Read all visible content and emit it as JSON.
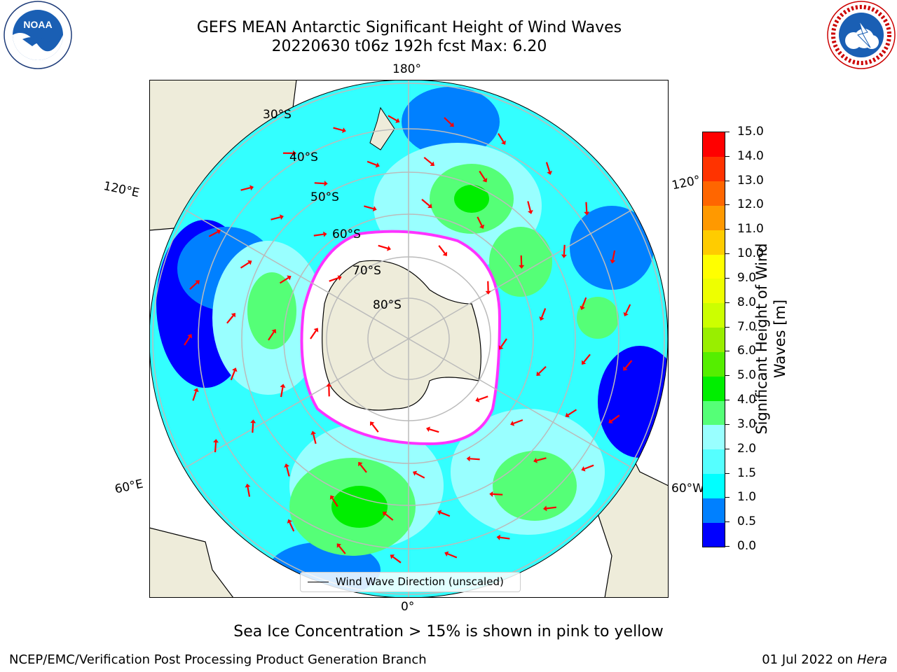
{
  "title": {
    "line1": "GEFS MEAN Antarctic Significant Height of Wind Waves",
    "line2": "20220630 t06z 192h fcst   Max: 6.20"
  },
  "logos": {
    "left": "NOAA",
    "right": "NATIONAL WEATHER SERVICE"
  },
  "map": {
    "projection": "south-polar-stereographic",
    "longitude_labels": {
      "top": "180°",
      "bottom": "0°",
      "upper_left": "120°E",
      "lower_left": "60°E",
      "upper_right": "120°",
      "lower_right": "60°W"
    },
    "latitude_labels": [
      "30°S",
      "40°S",
      "50°S",
      "60°S",
      "70°S",
      "80°S"
    ],
    "legend": "Wind Wave Direction (unscaled)",
    "colors": {
      "land": "#eeecda",
      "ice_free_fill": "#ffffff",
      "sea_ice_edge": "#ff33ff",
      "arrow": "#ff0000",
      "grid": "#bbbbbb"
    }
  },
  "colorbar": {
    "label_line1": "Significant Height of Wind",
    "label_line2": "Waves [m]",
    "ticks": [
      "0.0",
      "0.5",
      "1.0",
      "1.5",
      "2.0",
      "3.0",
      "4.0",
      "5.0",
      "6.0",
      "7.0",
      "8.0",
      "9.0",
      "10.0",
      "11.0",
      "12.0",
      "13.0",
      "14.0",
      "15.0"
    ],
    "colors": [
      "#0000ff",
      "#0080ff",
      "#00ffff",
      "#55ffff",
      "#99ffff",
      "#55ff77",
      "#00ee00",
      "#55ee00",
      "#99ee00",
      "#ccff00",
      "#eeff00",
      "#ffff00",
      "#ffcc00",
      "#ff9900",
      "#ff6600",
      "#ff3300",
      "#ff0000"
    ]
  },
  "caption": "Sea Ice Concentration > 15% is shown in pink to yellow",
  "footer": {
    "left": "NCEP/EMC/Verification Post Processing Product Generation Branch",
    "right_date": "01 Jul 2022 on ",
    "right_host": "Hera"
  }
}
